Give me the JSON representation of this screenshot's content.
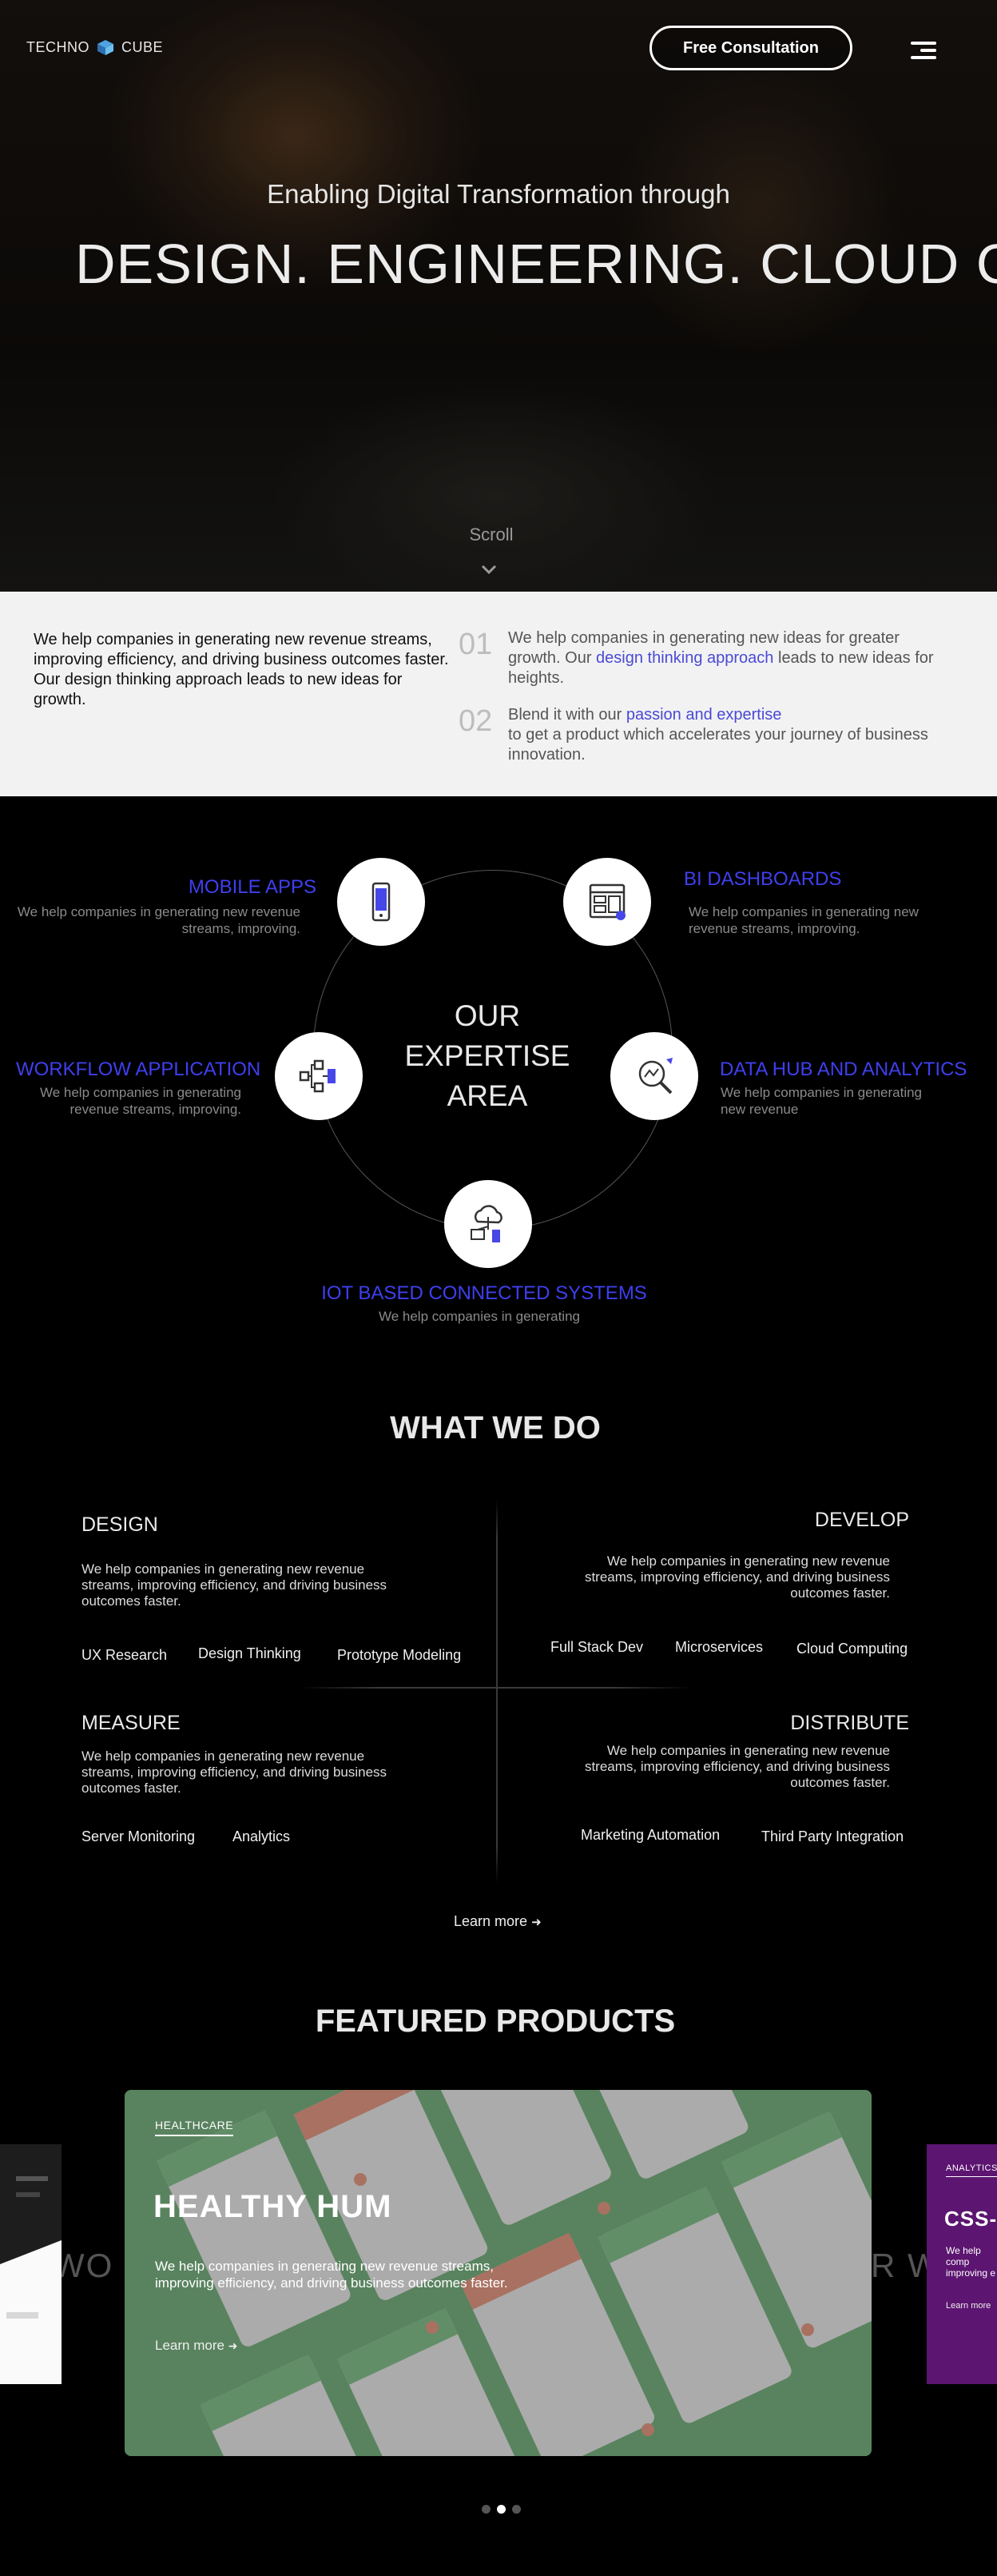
{
  "header": {
    "brand_left": "TECHNO",
    "brand_right": "CUBE",
    "cta_label": "Free Consultation"
  },
  "hero": {
    "subtitle": "Enabling Digital Transformation through",
    "title": "DESIGN. ENGINEERING. CLOUD CO.",
    "scroll_label": "Scroll"
  },
  "intro": {
    "left_text": "We help companies in generating new revenue streams, improving efficiency, and driving business outcomes faster. Our design thinking approach leads to new ideas for growth.",
    "points": [
      {
        "num": "01",
        "pre": "We help companies in generating new ideas for greater growth. Our ",
        "link": "design thinking approach",
        "post": " leads to new ideas for heights."
      },
      {
        "num": "02",
        "pre": "Blend it with our ",
        "link": "passion and expertise",
        "post": " to get a product which accelerates your journey of business innovation."
      }
    ]
  },
  "expertise": {
    "center_lines": [
      "OUR",
      "EXPERTISE",
      "AREA"
    ],
    "items": [
      {
        "title": "MOBILE APPS",
        "desc": "We help companies in generating new revenue streams, improving.",
        "icon": "smartphone-icon"
      },
      {
        "title": "BI DASHBOARDS",
        "desc": "We help companies in generating new revenue streams, improving.",
        "icon": "dashboard-icon"
      },
      {
        "title": "WORKFLOW APPLICATION",
        "desc": "We help companies in generating revenue streams, improving.",
        "icon": "workflow-icon"
      },
      {
        "title": "DATA HUB AND ANALYTICS",
        "desc": "We help companies in generating new revenue",
        "icon": "analytics-search-icon"
      },
      {
        "title": "IOT BASED CONNECTED SYSTEMS",
        "desc": "We help companies in generating",
        "icon": "cloud-devices-icon"
      }
    ],
    "accent": "#3f3ff0"
  },
  "what_we_do": {
    "heading": "WHAT WE DO",
    "design": {
      "title": "DESIGN",
      "desc": "We help companies in generating new revenue streams, improving efficiency, and driving business outcomes faster.",
      "tags": [
        "UX Research",
        "Design Thinking",
        "Prototype Modeling"
      ]
    },
    "develop": {
      "title": "DEVELOP",
      "desc": "We help companies in generating new revenue streams, improving efficiency, and driving business outcomes faster.",
      "tags": [
        "Full Stack Dev",
        "Microservices",
        "Cloud Computing"
      ]
    },
    "measure": {
      "title": "MEASURE",
      "desc": "We help companies in generating new revenue streams, improving efficiency, and driving business outcomes faster.",
      "tags": [
        "Server Monitoring",
        "Analytics"
      ]
    },
    "distribute": {
      "title": "DISTRIBUTE",
      "desc": "We help companies in generating new revenue streams, improving efficiency, and driving business outcomes faster.",
      "tags": [
        "Marketing Automation",
        "Third Party Integration"
      ]
    },
    "learn_more": "Learn more"
  },
  "products": {
    "heading": "FEATURED PRODUCTS",
    "main": {
      "category": "HEALTHCARE",
      "title": "HEALTHY HUM",
      "desc": "We help companies in generating new revenue streams, improving efficiency, and driving business outcomes faster.",
      "learn_more": "Learn more"
    },
    "right_peek": {
      "category": "ANALYTICS",
      "title": "CSS-E",
      "desc": "We help comp improving e faster.",
      "learn_more": "Learn more"
    },
    "ghost_left": "R WO",
    "ghost_right": "R W",
    "active_dot": 2,
    "dot_count": 3
  }
}
